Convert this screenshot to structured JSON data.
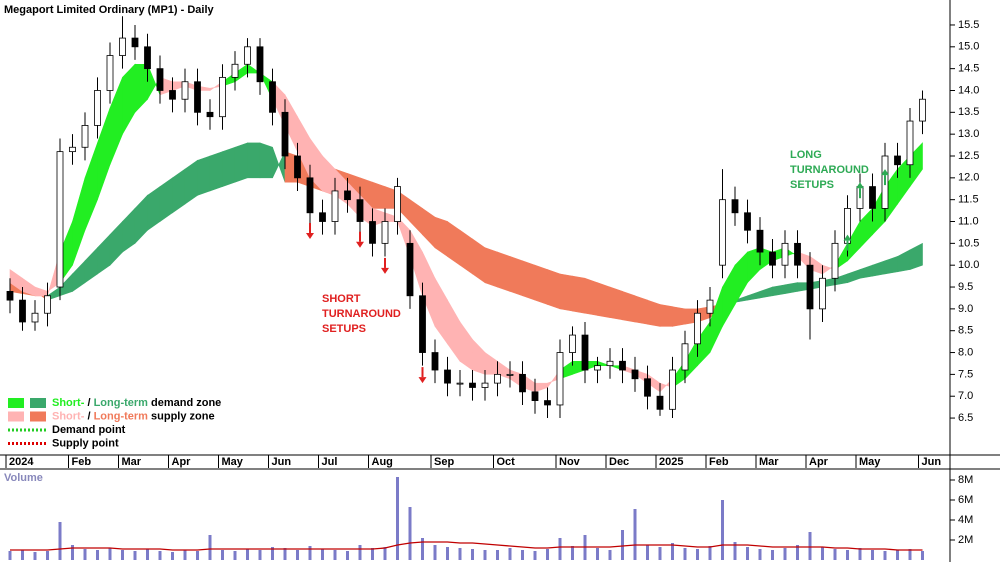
{
  "chart_data": {
    "type": "candlestick",
    "title": "Megaport Limited Ordinary (MP1) - Daily",
    "categories": [
      "2024",
      null,
      null,
      null,
      null,
      "Feb",
      null,
      null,
      null,
      "Mar",
      null,
      null,
      null,
      "Apr",
      null,
      null,
      null,
      "May",
      null,
      null,
      null,
      "Jun",
      null,
      null,
      null,
      "Jul",
      null,
      null,
      null,
      "Aug",
      null,
      null,
      null,
      null,
      "Sep",
      null,
      null,
      null,
      null,
      "Oct",
      null,
      null,
      null,
      null,
      "Nov",
      null,
      null,
      null,
      "Dec",
      null,
      null,
      null,
      "2025",
      null,
      null,
      null,
      "Feb",
      null,
      null,
      null,
      "Mar",
      null,
      null,
      null,
      "Apr",
      null,
      null,
      null,
      "May",
      null,
      null,
      null,
      null,
      "Jun"
    ],
    "open": [
      9.4,
      9.2,
      8.7,
      8.9,
      9.5,
      12.6,
      12.7,
      13.2,
      14.0,
      14.8,
      15.2,
      15.0,
      14.5,
      14.0,
      13.8,
      14.2,
      13.5,
      13.4,
      14.3,
      14.6,
      15.0,
      14.2,
      13.5,
      12.5,
      12.0,
      11.2,
      11.0,
      11.7,
      11.5,
      11.0,
      10.5,
      11.0,
      10.5,
      9.3,
      8.0,
      7.6,
      7.3,
      7.3,
      7.2,
      7.3,
      7.5,
      7.5,
      7.1,
      6.9,
      6.8,
      8.0,
      8.4,
      7.6,
      7.7,
      7.8,
      7.6,
      7.4,
      7.0,
      6.7,
      7.6,
      8.2,
      8.9,
      10.0,
      11.5,
      11.2,
      10.8,
      10.3,
      10.0,
      10.5,
      10.0,
      9.0,
      9.7,
      10.5,
      11.3,
      11.8,
      11.3,
      12.5,
      12.3,
      13.3
    ],
    "high": [
      9.7,
      9.5,
      9.2,
      9.6,
      12.9,
      13.0,
      13.5,
      14.3,
      15.1,
      15.7,
      15.5,
      15.3,
      14.8,
      14.3,
      14.5,
      14.5,
      13.8,
      14.6,
      14.9,
      15.2,
      15.2,
      14.5,
      13.8,
      12.8,
      12.3,
      11.5,
      12.0,
      12.0,
      11.8,
      11.3,
      11.3,
      12.0,
      10.8,
      9.6,
      8.3,
      7.9,
      7.6,
      7.6,
      7.6,
      7.8,
      7.8,
      7.8,
      7.4,
      7.2,
      8.3,
      8.6,
      8.7,
      7.9,
      8.1,
      8.1,
      7.9,
      7.7,
      7.3,
      7.9,
      8.5,
      9.2,
      9.5,
      12.2,
      11.8,
      11.5,
      11.1,
      10.6,
      10.8,
      10.8,
      10.3,
      10.0,
      10.8,
      11.6,
      12.1,
      12.1,
      12.8,
      12.8,
      13.6,
      14.0
    ],
    "low": [
      8.9,
      8.5,
      8.5,
      8.6,
      9.2,
      12.3,
      12.4,
      12.9,
      13.7,
      14.5,
      14.7,
      14.2,
      13.7,
      13.5,
      13.5,
      13.2,
      13.1,
      13.1,
      14.0,
      14.3,
      13.9,
      13.2,
      12.2,
      11.7,
      10.9,
      10.7,
      10.7,
      11.2,
      10.7,
      10.2,
      10.2,
      10.7,
      9.0,
      7.7,
      7.3,
      7.0,
      7.0,
      6.9,
      6.9,
      7.0,
      7.2,
      6.8,
      6.6,
      6.5,
      6.5,
      7.7,
      7.3,
      7.3,
      7.4,
      7.3,
      7.1,
      6.7,
      6.55,
      6.5,
      7.3,
      7.9,
      8.6,
      9.7,
      10.9,
      10.5,
      10.0,
      9.7,
      9.7,
      9.7,
      8.3,
      8.7,
      9.4,
      10.2,
      11.0,
      11.0,
      11.0,
      12.0,
      12.0,
      13.0
    ],
    "close": [
      9.2,
      8.7,
      8.9,
      9.3,
      12.6,
      12.7,
      13.2,
      14.0,
      14.8,
      15.2,
      15.0,
      14.5,
      14.0,
      13.8,
      14.2,
      13.5,
      13.4,
      14.3,
      14.6,
      15.0,
      14.2,
      13.5,
      12.5,
      12.0,
      11.2,
      11.0,
      11.7,
      11.5,
      11.0,
      10.5,
      11.0,
      11.8,
      9.3,
      8.0,
      7.6,
      7.3,
      7.3,
      7.2,
      7.3,
      7.5,
      7.5,
      7.1,
      6.9,
      6.8,
      8.0,
      8.4,
      7.6,
      7.7,
      7.8,
      7.6,
      7.4,
      7.0,
      6.7,
      7.6,
      8.2,
      8.9,
      9.2,
      11.5,
      11.2,
      10.8,
      10.3,
      10.0,
      10.5,
      10.0,
      9.0,
      9.7,
      10.5,
      11.3,
      11.8,
      11.3,
      12.5,
      12.3,
      13.3,
      13.8
    ],
    "up_color": "#ffffff",
    "down_color": "#000000",
    "long_term_band": {
      "fast": [
        9.4,
        9.35,
        9.3,
        9.3,
        9.5,
        9.8,
        10.1,
        10.4,
        10.7,
        11.0,
        11.3,
        11.6,
        11.8,
        12.0,
        12.2,
        12.4,
        12.5,
        12.6,
        12.7,
        12.8,
        12.8,
        12.7,
        11.9,
        11.9,
        11.8,
        11.7,
        11.6,
        11.5,
        11.4,
        11.3,
        11.3,
        11.3,
        11.0,
        10.7,
        10.4,
        10.2,
        10.0,
        9.8,
        9.6,
        9.5,
        9.4,
        9.3,
        9.2,
        9.1,
        9.0,
        8.95,
        8.9,
        8.85,
        8.8,
        8.75,
        8.7,
        8.65,
        8.6,
        8.6,
        8.65,
        8.7,
        8.8,
        9.0,
        9.2,
        9.3,
        9.4,
        9.5,
        9.55,
        9.6,
        9.6,
        9.65,
        9.7,
        9.8,
        9.9,
        10.0,
        10.1,
        10.2,
        10.35,
        10.5
      ],
      "slow": [
        9.6,
        9.5,
        9.4,
        9.2,
        9.3,
        9.4,
        9.6,
        9.8,
        10.0,
        10.3,
        10.5,
        10.8,
        11.0,
        11.2,
        11.4,
        11.6,
        11.7,
        11.8,
        11.9,
        12.0,
        12.0,
        12.0,
        12.6,
        12.5,
        12.4,
        12.3,
        12.2,
        12.1,
        12.0,
        11.9,
        11.8,
        11.7,
        11.5,
        11.3,
        11.1,
        11.0,
        10.8,
        10.6,
        10.4,
        10.3,
        10.2,
        10.1,
        10.0,
        9.9,
        9.8,
        9.75,
        9.7,
        9.6,
        9.5,
        9.4,
        9.3,
        9.2,
        9.1,
        9.05,
        9.0,
        9.0,
        9.05,
        9.1,
        9.15,
        9.2,
        9.25,
        9.3,
        9.35,
        9.4,
        9.45,
        9.5,
        9.55,
        9.6,
        9.7,
        9.75,
        9.8,
        9.85,
        9.9,
        10.0
      ],
      "demand_color": "#3aa86b",
      "supply_color": "#f07a5a"
    },
    "short_term_band": {
      "fast": [
        9.6,
        9.4,
        9.3,
        9.3,
        10.3,
        11.0,
        12.0,
        12.8,
        13.6,
        14.3,
        14.6,
        14.6,
        13.9,
        14.0,
        14.1,
        14.0,
        14.0,
        14.2,
        14.4,
        14.6,
        14.4,
        13.8,
        13.2,
        12.6,
        12.0,
        11.7,
        11.6,
        11.4,
        11.1,
        10.9,
        11.0,
        11.0,
        10.2,
        9.3,
        8.6,
        8.2,
        7.8,
        7.6,
        7.5,
        7.5,
        7.4,
        7.2,
        7.1,
        7.2,
        7.6,
        7.8,
        7.8,
        7.8,
        7.7,
        7.6,
        7.5,
        7.3,
        7.1,
        7.4,
        7.8,
        8.3,
        8.7,
        9.5,
        10.0,
        10.3,
        10.4,
        10.3,
        10.4,
        10.2,
        9.9,
        9.8,
        10.0,
        10.5,
        11.0,
        11.3,
        11.8,
        12.2,
        12.5,
        12.8
      ],
      "slow": [
        9.9,
        9.7,
        9.5,
        9.4,
        9.6,
        10.0,
        10.8,
        11.5,
        12.3,
        13.0,
        13.5,
        13.8,
        14.3,
        14.2,
        14.2,
        14.1,
        14.05,
        14.1,
        14.2,
        14.4,
        14.4,
        14.2,
        13.9,
        13.4,
        12.9,
        12.5,
        12.2,
        11.9,
        11.6,
        11.3,
        11.2,
        11.1,
        10.8,
        10.3,
        9.7,
        9.2,
        8.7,
        8.3,
        8.0,
        7.8,
        7.6,
        7.5,
        7.3,
        7.3,
        7.4,
        7.5,
        7.6,
        7.7,
        7.7,
        7.7,
        7.6,
        7.5,
        7.3,
        7.2,
        7.4,
        7.7,
        8.0,
        8.6,
        9.1,
        9.6,
        9.9,
        10.1,
        10.2,
        10.3,
        10.2,
        10.0,
        9.9,
        10.1,
        10.4,
        10.7,
        11.0,
        11.4,
        11.8,
        12.2
      ],
      "demand_color": "#22ee22",
      "supply_color": "#ffb3b3"
    },
    "supply_points": [
      {
        "at": 24,
        "value": 10.6
      },
      {
        "at": 28,
        "value": 10.4
      },
      {
        "at": 30,
        "value": 9.8
      },
      {
        "at": 33,
        "value": 7.3
      }
    ],
    "demand_points": [
      {
        "at": 67,
        "value": 10.7
      },
      {
        "at": 68,
        "value": 11.9
      },
      {
        "at": 70,
        "value": 12.2
      }
    ],
    "supply_point_color": "#e02020",
    "demand_point_color": "#2eaa55",
    "annotations": [
      {
        "lines": [
          "SHORT",
          "TURNAROUND",
          "SETUPS"
        ],
        "color": "#e02020"
      },
      {
        "lines": [
          "LONG",
          "TURNAROUND",
          "SETUPS"
        ],
        "color": "#2eaa55"
      }
    ],
    "legend": [
      {
        "swatch_colors": [
          "#22ee22",
          "#3aa86b"
        ],
        "parts": [
          {
            "text": "Short-",
            "color": "#22ee22"
          },
          {
            "text": " / "
          },
          {
            "text": "Long-term",
            "color": "#3aa86b"
          },
          {
            "text": " demand zone"
          }
        ]
      },
      {
        "swatch_colors": [
          "#ffb3b3",
          "#f07a5a"
        ],
        "parts": [
          {
            "text": "Short-",
            "color": "#ffb3b3"
          },
          {
            "text": " / "
          },
          {
            "text": "Long-term",
            "color": "#f07a5a"
          },
          {
            "text": " supply zone"
          }
        ]
      },
      {
        "line_color": "#22cc22",
        "parts": [
          {
            "text": "Demand point"
          }
        ]
      },
      {
        "line_color": "#dd0000",
        "parts": [
          {
            "text": "Supply point"
          }
        ]
      }
    ],
    "ylim": [
      5.7,
      15.9
    ],
    "yticks": [
      6.5,
      {
        "value": 7,
        "label": "7.0"
      },
      7.5,
      {
        "value": 8,
        "label": "8.0"
      },
      8.5,
      {
        "value": 9,
        "label": "9.0"
      },
      9.5,
      {
        "value": 10,
        "label": "10.0"
      },
      10.5,
      {
        "value": 11,
        "label": "11.0"
      },
      11.5,
      {
        "value": 12,
        "label": "12.0"
      },
      12.5,
      {
        "value": 13,
        "label": "13.0"
      },
      13.5,
      {
        "value": 14,
        "label": "14.0"
      },
      14.5,
      {
        "value": 15,
        "label": "15.0"
      },
      15.5
    ],
    "volume": {
      "label": "Volume",
      "values": [
        900000,
        1000000,
        800000,
        900000,
        3800000,
        1500000,
        1100000,
        1000000,
        1200000,
        1000000,
        900000,
        1100000,
        900000,
        800000,
        1000000,
        900000,
        2500000,
        1000000,
        900000,
        1100000,
        1000000,
        1300000,
        1200000,
        1000000,
        1400000,
        1100000,
        1000000,
        900000,
        1500000,
        1200000,
        1300000,
        8300000,
        5300000,
        2200000,
        1500000,
        1300000,
        1200000,
        1100000,
        1000000,
        1000000,
        1200000,
        1000000,
        900000,
        1100000,
        2200000,
        1400000,
        2500000,
        1200000,
        1000000,
        3000000,
        5100000,
        1500000,
        1300000,
        1700000,
        1200000,
        1100000,
        1400000,
        6000000,
        1800000,
        1300000,
        1100000,
        1000000,
        1200000,
        1500000,
        2800000,
        1300000,
        1100000,
        1000000,
        1200000,
        1000000,
        900000,
        1000000,
        1100000,
        900000
      ],
      "average": [
        1000000,
        1000000,
        1000000,
        1000000,
        1100000,
        1200000,
        1200000,
        1200000,
        1200000,
        1100000,
        1100000,
        1100000,
        1100000,
        1000000,
        1000000,
        1000000,
        1100000,
        1100000,
        1100000,
        1100000,
        1100000,
        1100000,
        1100000,
        1100000,
        1100000,
        1100000,
        1100000,
        1100000,
        1100000,
        1100000,
        1200000,
        1500000,
        1700000,
        1800000,
        1800000,
        1800000,
        1700000,
        1700000,
        1600000,
        1500000,
        1400000,
        1300000,
        1200000,
        1200000,
        1300000,
        1300000,
        1300000,
        1300000,
        1300000,
        1400000,
        1500000,
        1500000,
        1500000,
        1500000,
        1400000,
        1300000,
        1300000,
        1500000,
        1500000,
        1500000,
        1400000,
        1300000,
        1300000,
        1300000,
        1300000,
        1300000,
        1200000,
        1200000,
        1100000,
        1100000,
        1100000,
        1000000,
        1000000,
        1000000
      ],
      "color": "#7b7bc8",
      "average_color": "#c00000",
      "ylim": [
        0,
        9000000
      ],
      "yticks": [
        {
          "value": 2000000,
          "label": "2M"
        },
        {
          "value": 4000000,
          "label": "4M"
        },
        {
          "value": 6000000,
          "label": "6M"
        },
        {
          "value": 8000000,
          "label": "8M"
        }
      ]
    }
  }
}
